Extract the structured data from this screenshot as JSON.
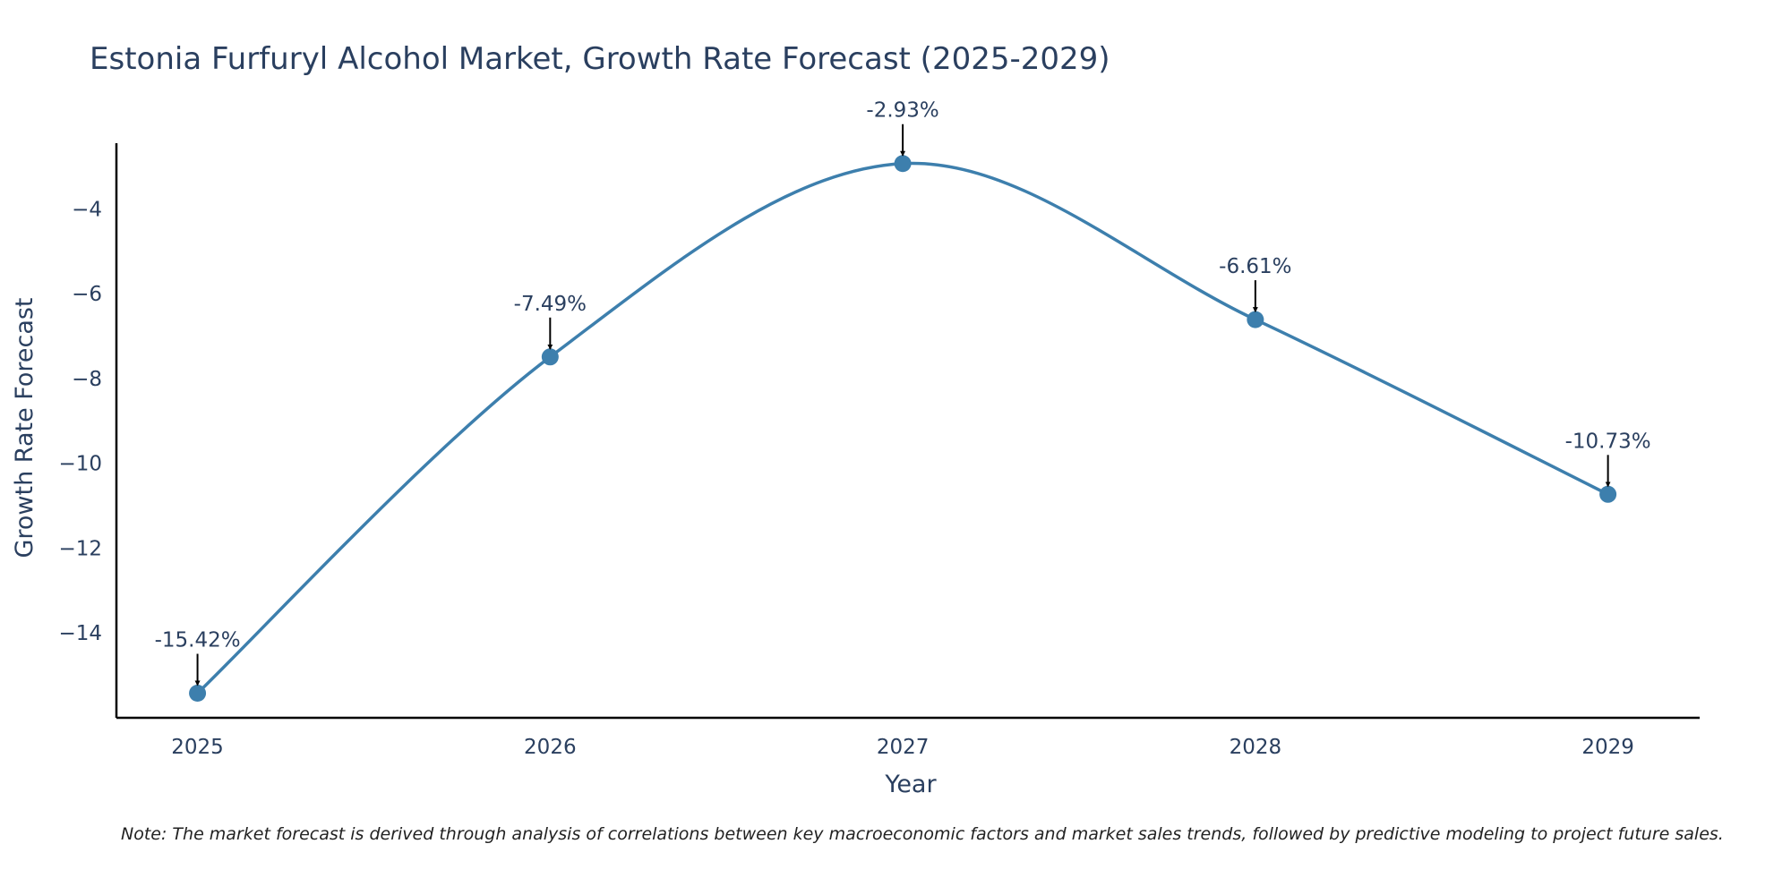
{
  "chart_data": {
    "type": "line",
    "title": "Estonia Furfuryl Alcohol Market, Growth Rate Forecast (2025-2029)",
    "xlabel": "Year",
    "ylabel": "Growth Rate Forecast",
    "x": [
      "2025",
      "2026",
      "2027",
      "2028",
      "2029"
    ],
    "y": [
      -15.42,
      -7.49,
      -2.93,
      -6.61,
      -10.73
    ],
    "labels": [
      "-15.42%",
      "-7.49%",
      "-2.93%",
      "-6.61%",
      "-10.73%"
    ],
    "xlim": [
      2024.77,
      2029.26
    ],
    "ylim": [
      -16.0,
      -2.45
    ],
    "yticks": [
      -14,
      -12,
      -10,
      -8,
      -6,
      -4
    ],
    "ytick_labels": [
      "−14",
      "−12",
      "−10",
      "−8",
      "−6",
      "−4"
    ],
    "line_color": "#3d7fad",
    "marker_color": "#3d7fad",
    "arrow_color": "#000000",
    "grid": false,
    "legend": "none"
  },
  "note": "Note: The market forecast is derived through analysis of correlations between key macroeconomic factors and market sales trends, followed by predictive modeling to project future sales."
}
